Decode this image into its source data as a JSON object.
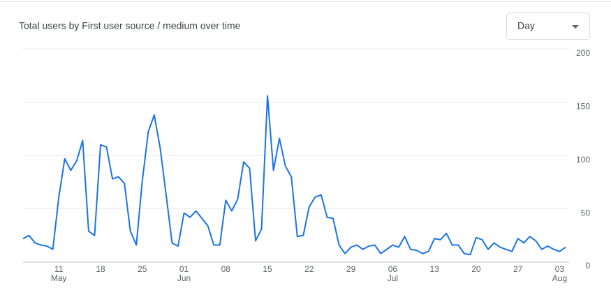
{
  "controls": {
    "granularity": "Day"
  },
  "chart_data": {
    "type": "line",
    "title": "Total users by First user source / medium over time",
    "categories": [
      null,
      null,
      null,
      null,
      null,
      null,
      "11 May",
      null,
      null,
      null,
      null,
      null,
      null,
      "18",
      null,
      null,
      null,
      null,
      null,
      null,
      "25",
      null,
      null,
      null,
      null,
      null,
      null,
      "01 Jun",
      null,
      null,
      null,
      null,
      null,
      null,
      "08",
      null,
      null,
      null,
      null,
      null,
      null,
      "15",
      null,
      null,
      null,
      null,
      null,
      null,
      "22",
      null,
      null,
      null,
      null,
      null,
      null,
      "29",
      null,
      null,
      null,
      null,
      null,
      null,
      "06 Jul",
      null,
      null,
      null,
      null,
      null,
      null,
      "13",
      null,
      null,
      null,
      null,
      null,
      null,
      "20",
      null,
      null,
      null,
      null,
      null,
      null,
      "27",
      null,
      null,
      null,
      null,
      null,
      null,
      "03 Aug",
      null
    ],
    "series": [
      {
        "color": "#1a73e8",
        "values": [
          22,
          25,
          18,
          16,
          15,
          12,
          61,
          97,
          86,
          95,
          114,
          29,
          25,
          110,
          108,
          78,
          80,
          74,
          29,
          16,
          76,
          122,
          138,
          107,
          63,
          18,
          15,
          46,
          42,
          48,
          41,
          34,
          16,
          16,
          58,
          48,
          59,
          94,
          88,
          20,
          31,
          156,
          86,
          116,
          90,
          80,
          24,
          25,
          52,
          61,
          63,
          42,
          41,
          16,
          8,
          14,
          16,
          12,
          15,
          16,
          8,
          12,
          16,
          14,
          24,
          12,
          11,
          8,
          10,
          22,
          21,
          27,
          16,
          16,
          8,
          7,
          23,
          21,
          12,
          18,
          14,
          12,
          10,
          22,
          18,
          24,
          20,
          12,
          15,
          12,
          10,
          14
        ]
      }
    ],
    "ylim": [
      0,
      200
    ],
    "yticks": [
      0,
      50,
      100,
      150,
      200
    ],
    "grid": true,
    "y_axis_side": "right"
  }
}
